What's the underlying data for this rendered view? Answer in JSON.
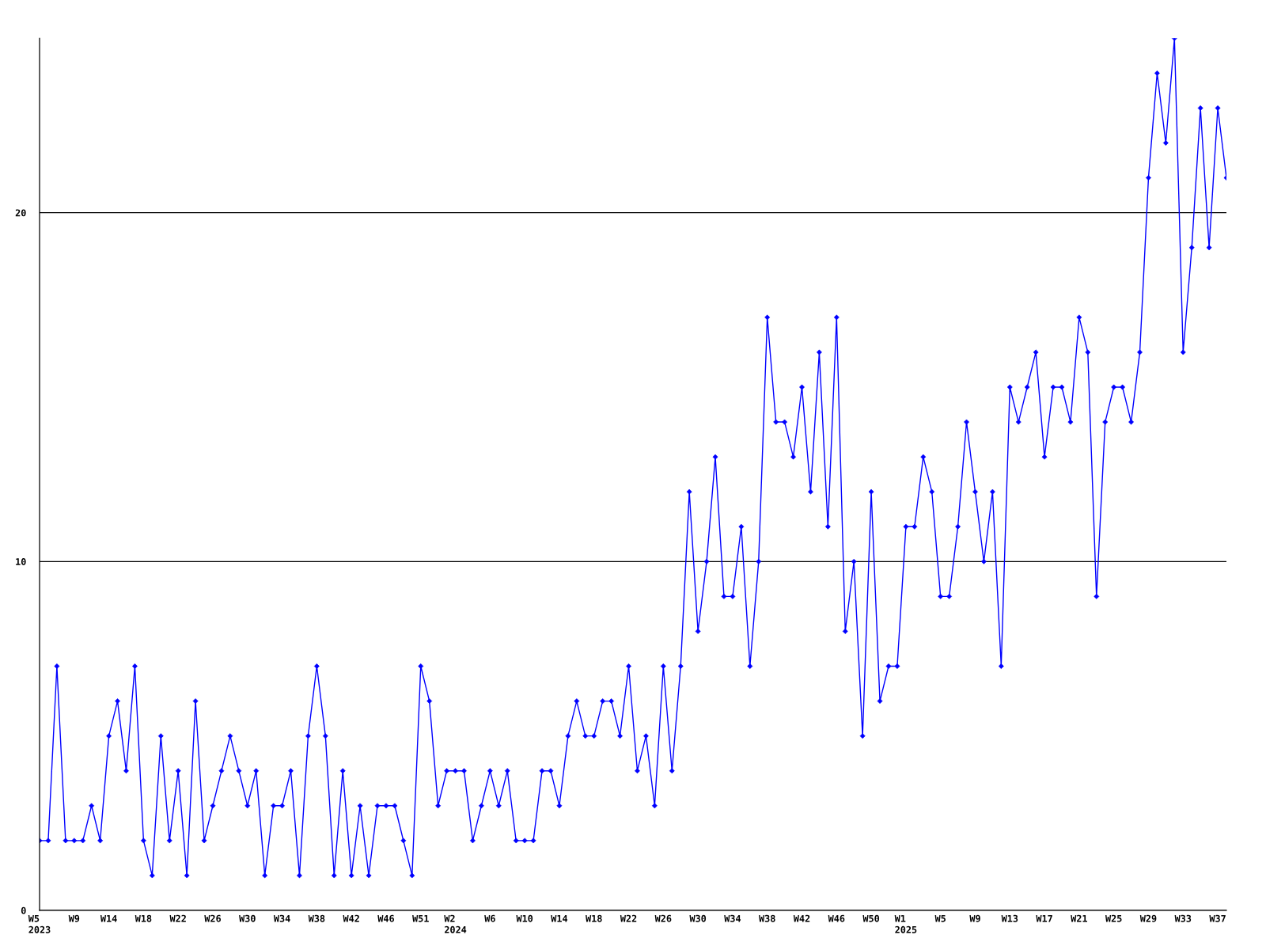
{
  "chart_data": {
    "type": "line",
    "categories": [
      "W5\n2023",
      null,
      null,
      null,
      "W9",
      null,
      null,
      null,
      "W14",
      null,
      null,
      null,
      "W18",
      null,
      null,
      null,
      "W22",
      null,
      null,
      null,
      "W26",
      null,
      null,
      null,
      "W30",
      null,
      null,
      null,
      "W34",
      null,
      null,
      null,
      "W38",
      null,
      null,
      null,
      "W42",
      null,
      null,
      null,
      "W46",
      null,
      null,
      null,
      "W51",
      null,
      null,
      null,
      "W2\n2024",
      null,
      null,
      null,
      "W6",
      null,
      null,
      null,
      "W10",
      null,
      null,
      null,
      "W14",
      null,
      null,
      null,
      "W18",
      null,
      null,
      null,
      "W22",
      null,
      null,
      null,
      "W26",
      null,
      null,
      null,
      "W30",
      null,
      null,
      null,
      "W34",
      null,
      null,
      null,
      "W38",
      null,
      null,
      null,
      "W42",
      null,
      null,
      null,
      "W46",
      null,
      null,
      null,
      "W50",
      null,
      null,
      null,
      "W1\n2025",
      null,
      null,
      null,
      "W5",
      null,
      null,
      null,
      "W9",
      null,
      null,
      null,
      "W13",
      null,
      null,
      null,
      "W17",
      null,
      null,
      null,
      "W21",
      null,
      null,
      null,
      "W25",
      null,
      null,
      null,
      "W29",
      null,
      null,
      null,
      "W33",
      null,
      null,
      null,
      "W37",
      null
    ],
    "values": [
      2,
      2,
      7,
      2,
      2,
      2,
      3,
      2,
      5,
      6,
      4,
      7,
      2,
      1,
      5,
      2,
      4,
      1,
      6,
      2,
      3,
      4,
      5,
      4,
      3,
      4,
      1,
      3,
      3,
      4,
      1,
      5,
      7,
      5,
      1,
      4,
      1,
      3,
      1,
      3,
      3,
      3,
      2,
      1,
      7,
      6,
      3,
      4,
      4,
      4,
      2,
      3,
      4,
      3,
      4,
      2,
      2,
      2,
      4,
      4,
      3,
      5,
      6,
      5,
      5,
      6,
      6,
      5,
      7,
      4,
      5,
      3,
      7,
      4,
      7,
      12,
      8,
      10,
      13,
      9,
      9,
      11,
      7,
      10,
      17,
      14,
      14,
      13,
      15,
      12,
      16,
      11,
      17,
      8,
      10,
      5,
      12,
      6,
      7,
      7,
      11,
      11,
      13,
      12,
      9,
      9,
      11,
      14,
      12,
      10,
      12,
      7,
      15,
      14,
      15,
      16,
      13,
      15,
      15,
      14,
      17,
      16,
      9,
      14,
      15,
      15,
      14,
      16,
      21,
      24,
      22,
      25,
      16,
      19,
      23,
      19,
      23,
      21
    ],
    "color": "#0000ff",
    "ylim": [
      0,
      25
    ],
    "yticks": [
      0,
      10,
      20
    ],
    "grid": "y",
    "marker": "diamond",
    "line_style": "solid"
  }
}
